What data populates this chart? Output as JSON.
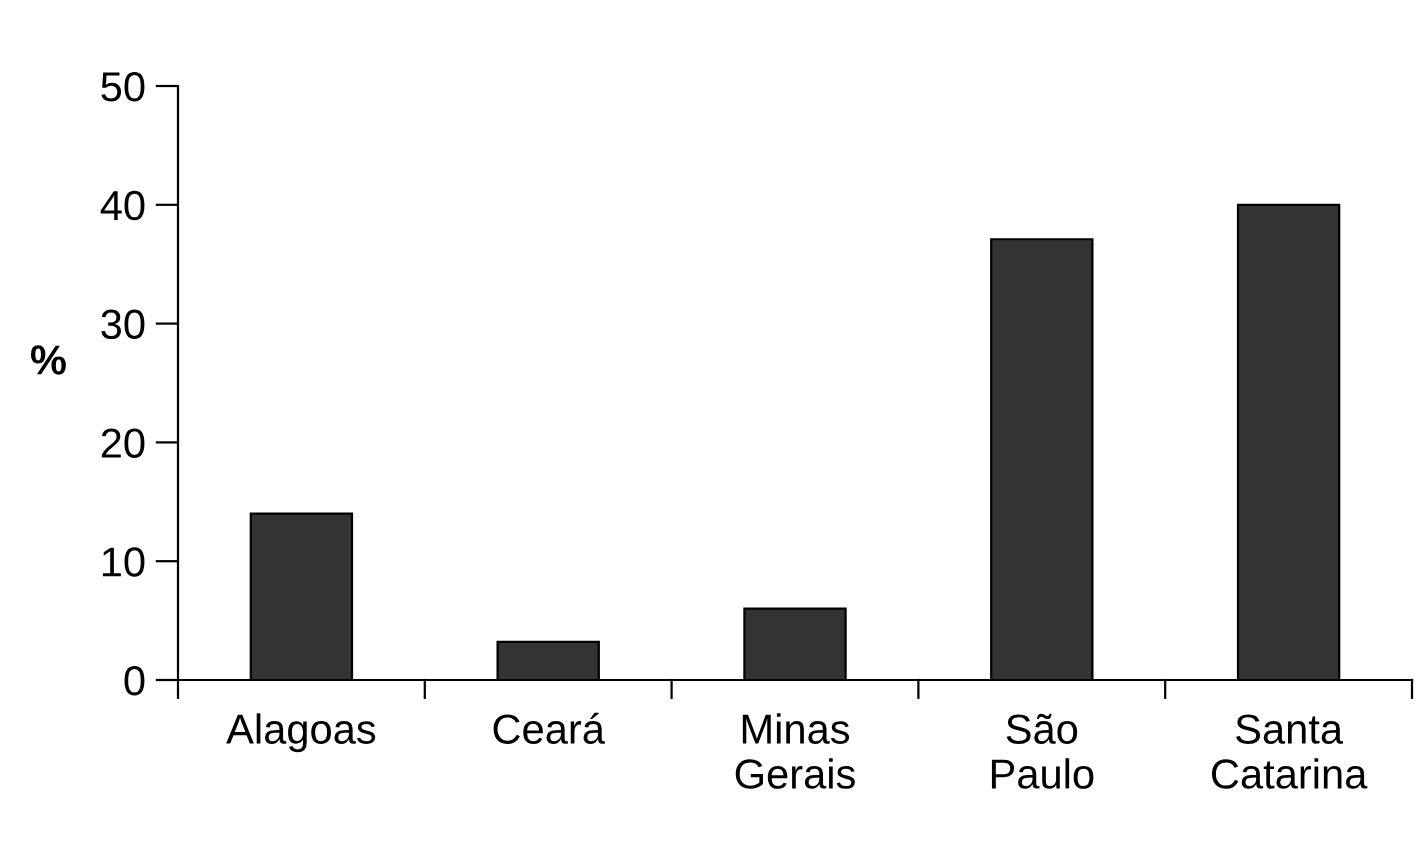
{
  "chart_data": {
    "type": "bar",
    "ylabel": "%",
    "categories": [
      "Alagoas",
      "Ceará",
      "Minas Gerais",
      "São Paulo",
      "Santa Catarina"
    ],
    "values": [
      14,
      3.2,
      6,
      37.1,
      40
    ],
    "color": "#333333",
    "ylim": [
      0,
      50
    ],
    "yticks": [
      0,
      10,
      20,
      30,
      40,
      50
    ],
    "grid": false
  }
}
